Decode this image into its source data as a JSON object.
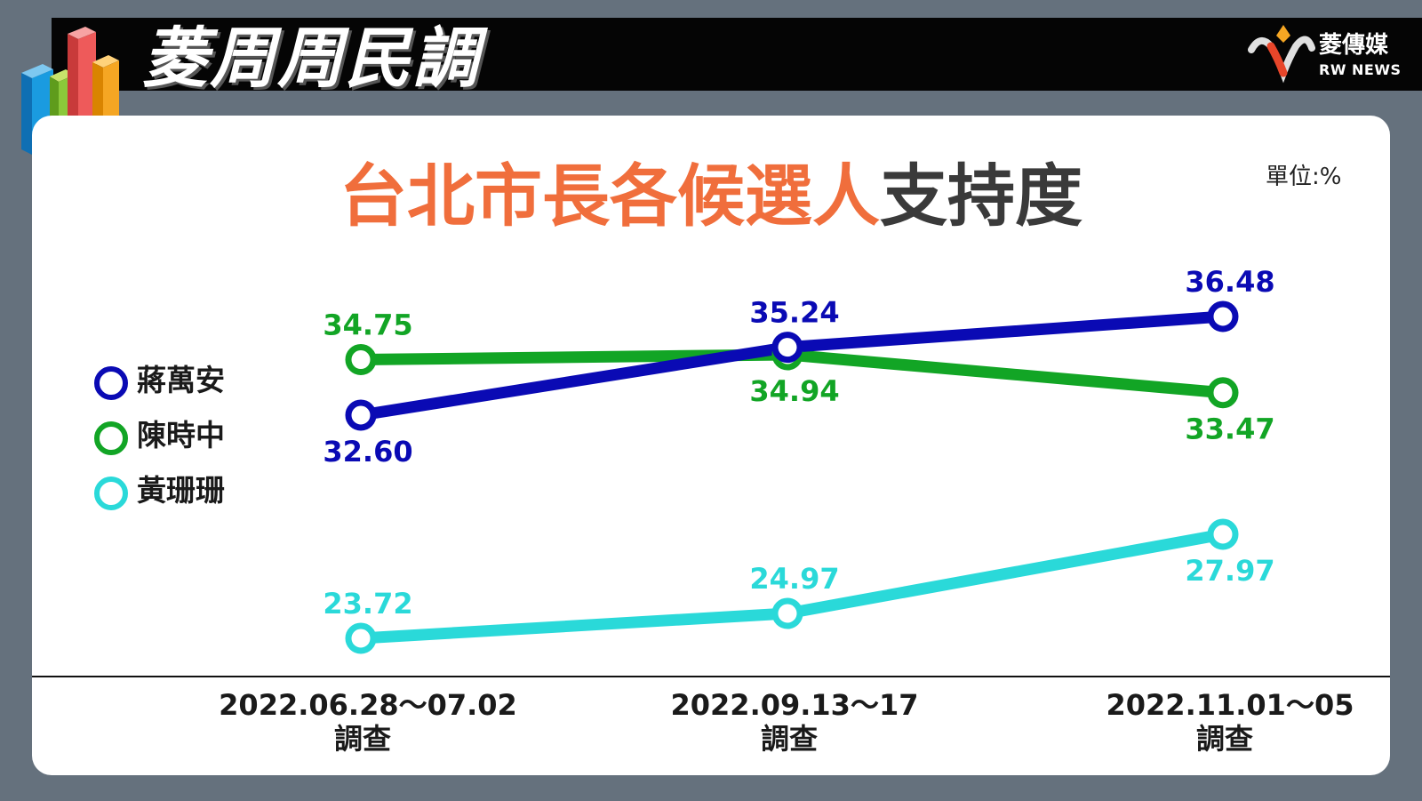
{
  "brand": {
    "title": "菱周周民調",
    "logo_name": "菱傳媒",
    "logo_sub": "RW NEWS"
  },
  "chart_data": {
    "type": "line",
    "title_highlight": "台北市長各候選人",
    "title_rest": "支持度",
    "unit_label": "單位:%",
    "categories": [
      [
        "2022.06.28～07.02",
        "調查"
      ],
      [
        "2022.09.13～17",
        "調查"
      ],
      [
        "2022.11.01～05",
        "調查"
      ]
    ],
    "series": [
      {
        "name": "蔣萬安",
        "color": "#0a0ab4",
        "values": [
          32.6,
          35.24,
          36.48
        ],
        "labels": [
          "32.60",
          "35.24",
          "36.48"
        ],
        "label_pos": [
          "below",
          "above",
          "above"
        ]
      },
      {
        "name": "陳時中",
        "color": "#12a525",
        "values": [
          34.75,
          34.94,
          33.47
        ],
        "labels": [
          "34.75",
          "34.94",
          "33.47"
        ],
        "label_pos": [
          "above",
          "below",
          "below"
        ]
      },
      {
        "name": "黃珊珊",
        "color": "#2ad9d9",
        "values": [
          23.72,
          24.97,
          27.97
        ],
        "labels": [
          "23.72",
          "24.97",
          "27.97"
        ],
        "label_pos": [
          "above",
          "above",
          "below"
        ]
      }
    ],
    "legend_position": "left",
    "grid": false
  }
}
